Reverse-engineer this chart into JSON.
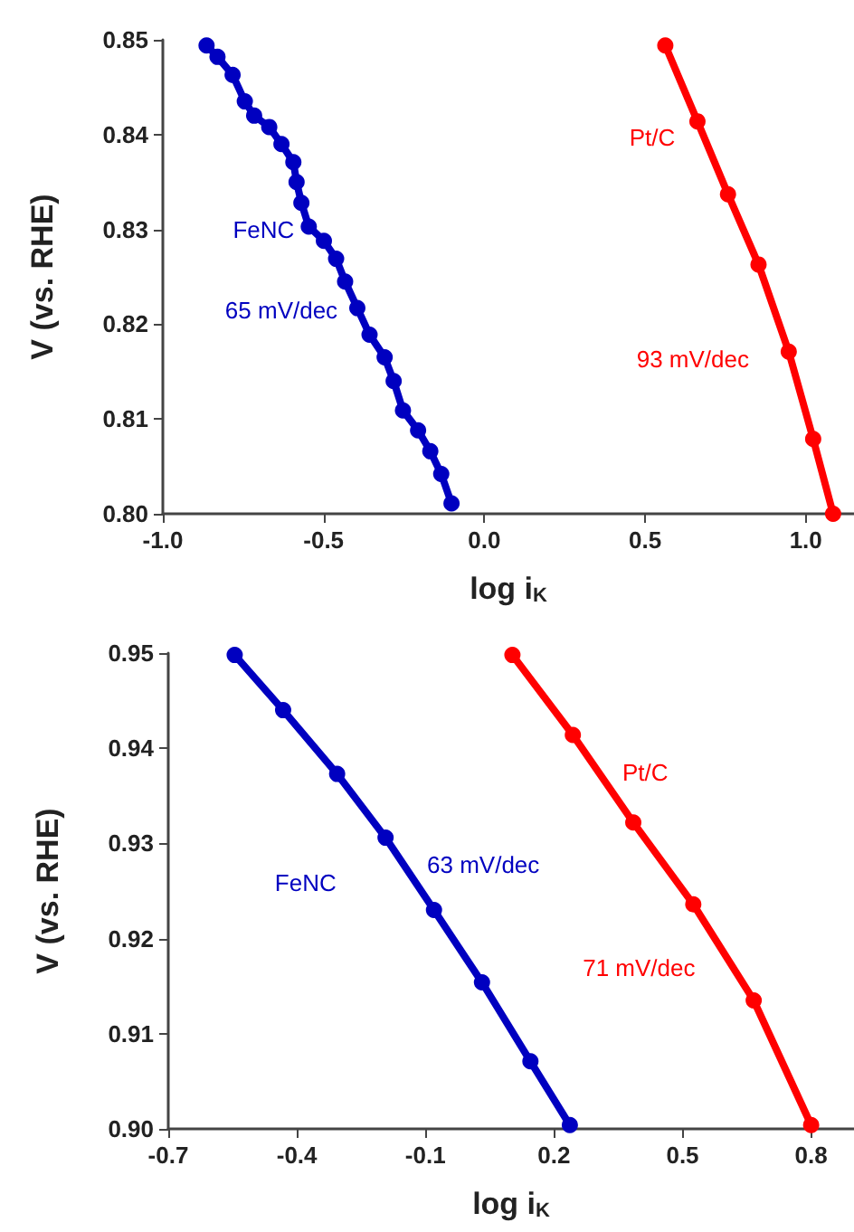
{
  "chart_data": [
    {
      "type": "line",
      "xlabel": "log i$_{K}$",
      "ylabel": "V (vs. RHE)",
      "marker": "circle",
      "xlim": [
        -1.0,
        1.15
      ],
      "xticks": [
        {
          "value": -1.0,
          "label": "-1.0"
        },
        -0.5,
        {
          "value": 0,
          "label": "0.0"
        },
        0.5,
        {
          "value": 1.0,
          "label": "1.0"
        }
      ],
      "ylim": [
        0.8,
        0.85
      ],
      "yticks": [
        {
          "value": 0.8,
          "label": "0.80"
        },
        0.81,
        0.82,
        0.83,
        0.84,
        0.85
      ],
      "series": [
        {
          "name": "FeNC",
          "color": "#0000c0",
          "x": [
            -0.864,
            -0.83,
            -0.783,
            -0.745,
            -0.716,
            -0.669,
            -0.631,
            -0.594,
            -0.584,
            -0.569,
            -0.546,
            -0.499,
            -0.461,
            -0.433,
            -0.395,
            -0.357,
            -0.31,
            -0.282,
            -0.253,
            -0.206,
            -0.168,
            -0.134,
            -0.102
          ],
          "values": [
            0.8494,
            0.8482,
            0.8463,
            0.8435,
            0.842,
            0.8408,
            0.839,
            0.8371,
            0.835,
            0.8328,
            0.8303,
            0.8288,
            0.8269,
            0.8245,
            0.8217,
            0.8189,
            0.8165,
            0.814,
            0.8109,
            0.8088,
            0.8066,
            0.8042,
            0.8011
          ]
        },
        {
          "name": "Pt/C",
          "color": "#ff0000",
          "x": [
            0.563,
            0.663,
            0.758,
            0.853,
            0.947,
            1.023,
            1.085
          ],
          "values": [
            0.8494,
            0.8414,
            0.8337,
            0.8263,
            0.8171,
            0.8079,
            0.8
          ]
        }
      ],
      "annotations": [
        "65 mV/dec",
        "93 mV/dec"
      ]
    },
    {
      "type": "line",
      "xlabel": "log i$_{K}$",
      "ylabel": "V (vs. RHE)",
      "marker": "circle",
      "xlim": [
        -0.7,
        0.9
      ],
      "xticks": [
        -0.7,
        -0.4,
        -0.1,
        0.2,
        0.5,
        0.8
      ],
      "ylim": [
        0.9,
        0.95
      ],
      "yticks": [
        {
          "value": 0.9,
          "label": "0.90"
        },
        0.91,
        0.92,
        0.93,
        0.94,
        0.95
      ],
      "series": [
        {
          "name": "FeNC",
          "color": "#0000c0",
          "x": [
            -0.545,
            -0.432,
            -0.306,
            -0.193,
            -0.08,
            0.032,
            0.145,
            0.237
          ],
          "values": [
            0.9498,
            0.944,
            0.9373,
            0.9306,
            0.923,
            0.9154,
            0.9071,
            0.9004
          ]
        },
        {
          "name": "Pt/C",
          "color": "#ff0000",
          "x": [
            0.103,
            0.244,
            0.385,
            0.525,
            0.666,
            0.8
          ],
          "values": [
            0.9498,
            0.9414,
            0.9322,
            0.9236,
            0.9135,
            0.9004
          ]
        }
      ],
      "annotations": [
        "63 mV/dec",
        "71 mV/dec"
      ]
    }
  ]
}
